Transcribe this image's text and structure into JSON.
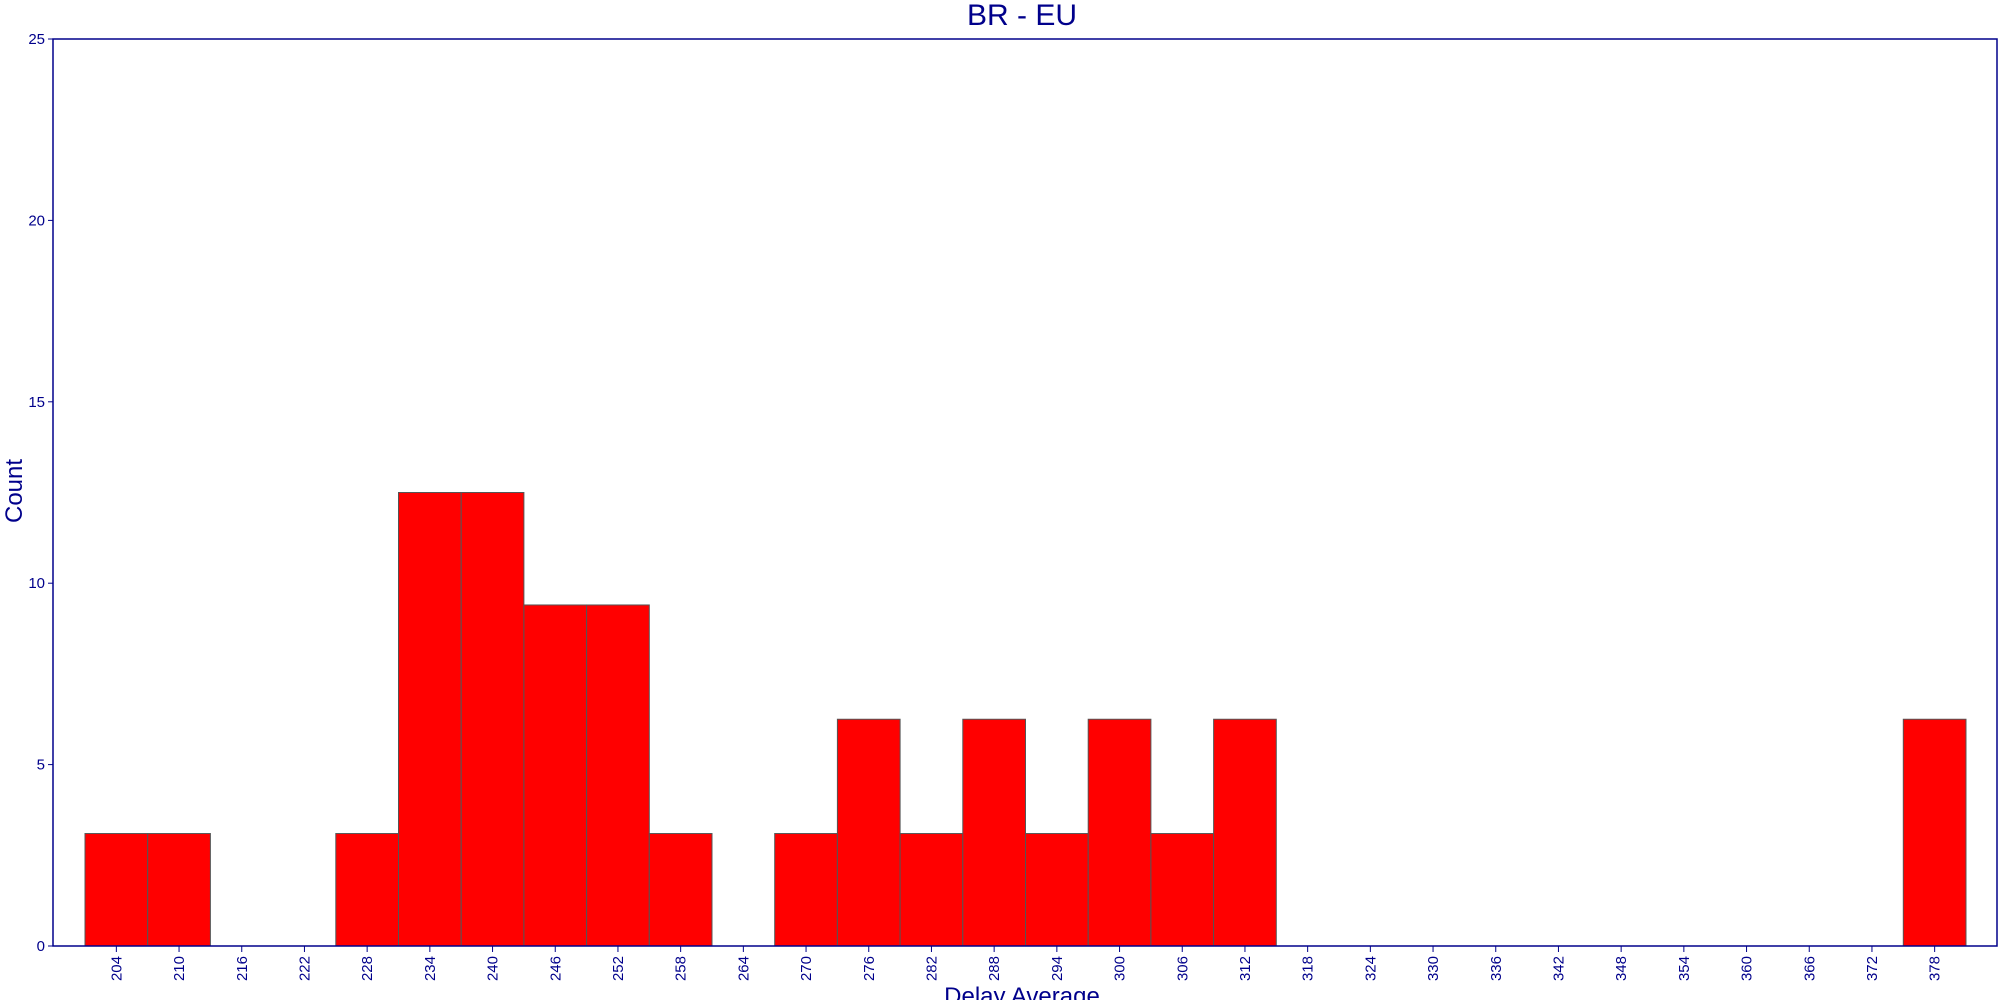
{
  "chart_data": {
    "type": "bar",
    "title": "BR - EU",
    "xlabel": "Delay Average",
    "ylabel": "Count",
    "ylim": [
      0,
      25
    ],
    "yticks": [
      "0",
      "5",
      "10",
      "15",
      "20",
      "25"
    ],
    "categories": [
      "204",
      "210",
      "216",
      "222",
      "228",
      "234",
      "240",
      "246",
      "252",
      "258",
      "264",
      "270",
      "276",
      "282",
      "288",
      "294",
      "300",
      "306",
      "312",
      "318",
      "324",
      "330",
      "336",
      "342",
      "348",
      "354",
      "360",
      "366",
      "372",
      "378"
    ],
    "values": [
      3.1,
      3.1,
      0,
      0,
      3.1,
      12.5,
      12.5,
      9.4,
      9.4,
      3.1,
      0,
      3.1,
      6.25,
      3.1,
      6.25,
      3.1,
      6.25,
      3.1,
      6.25,
      0,
      0,
      0,
      0,
      0,
      0,
      0,
      0,
      0,
      0,
      6.25
    ],
    "grid": false,
    "colors": {
      "bar": "#ff0000",
      "bar_edge": "#555555",
      "axis": "#00008b",
      "background": "#ffffff"
    }
  }
}
